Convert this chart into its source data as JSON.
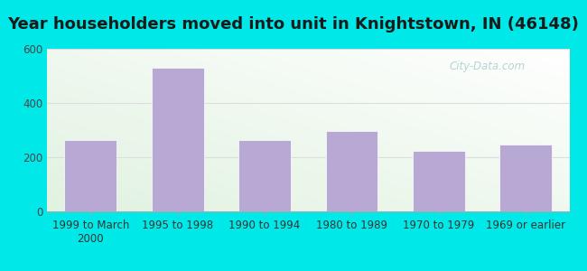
{
  "title": "Year householders moved into unit in Knightstown, IN (46148)",
  "categories": [
    "1999 to March\n2000",
    "1995 to 1998",
    "1990 to 1994",
    "1980 to 1989",
    "1970 to 1979",
    "1969 or earlier"
  ],
  "values": [
    262,
    530,
    265,
    298,
    222,
    248
  ],
  "bar_color": "#b8a8d4",
  "bar_edge_color": "#ffffff",
  "ylim": [
    0,
    600
  ],
  "yticks": [
    0,
    200,
    400,
    600
  ],
  "background_outer": "#00e8e8",
  "grid_color": "#dddddd",
  "title_fontsize": 13,
  "tick_fontsize": 8.5,
  "watermark_text": "City-Data.com",
  "watermark_color": "#aacccc",
  "grad_bottom_left": "#c8eec8",
  "grad_top_right": "#f8fff8"
}
